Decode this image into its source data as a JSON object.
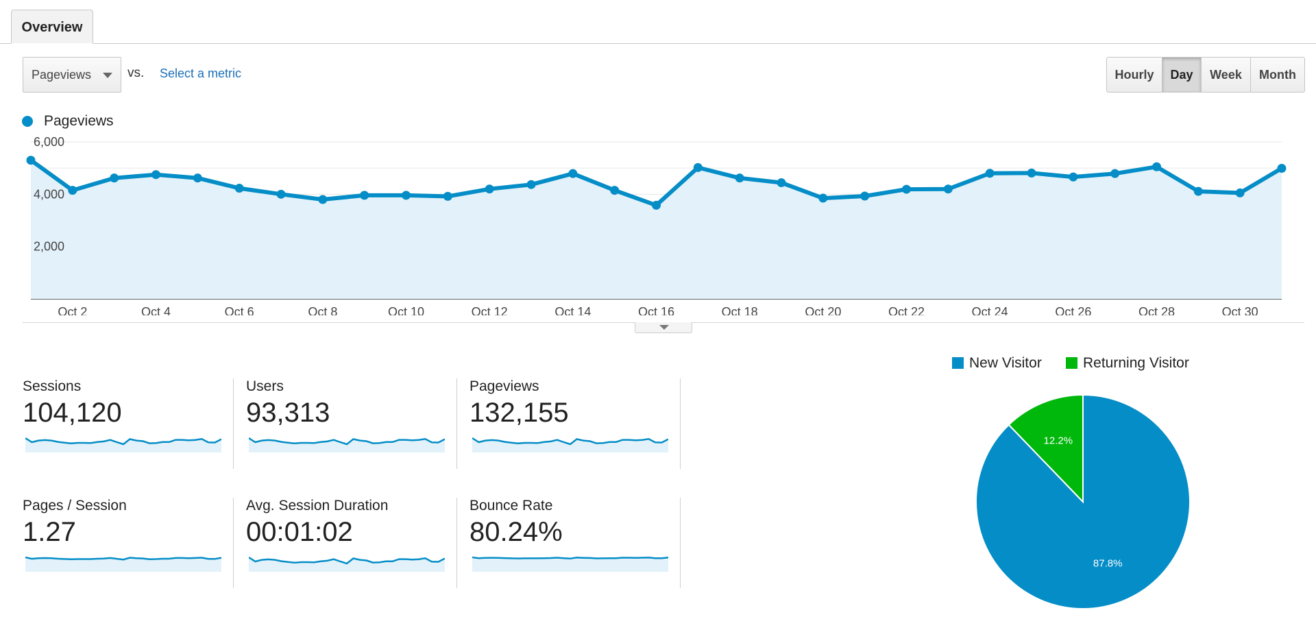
{
  "tabs": [
    {
      "label": "Overview"
    }
  ],
  "toolbar": {
    "metric_select": "Pageviews",
    "vs_label": "vs.",
    "select_metric_link": "Select a metric",
    "periods": [
      "Hourly",
      "Day",
      "Week",
      "Month"
    ],
    "active_period": "Day"
  },
  "colors": {
    "accent": "#058dc7",
    "area_fill": "#e3f2fa",
    "new_visitor": "#058dc7",
    "returning_visitor": "#00b70b",
    "link": "#1a6fb8"
  },
  "chart_data": [
    {
      "type": "line",
      "legend": "top-left",
      "series": [
        {
          "name": "Pageviews",
          "values": [
            5300,
            4150,
            4620,
            4750,
            4620,
            4230,
            4000,
            3800,
            3960,
            3960,
            3920,
            4200,
            4370,
            4790,
            4150,
            3580,
            5020,
            4620,
            4440,
            3850,
            3930,
            4190,
            4200,
            4800,
            4810,
            4660,
            4790,
            5050,
            4110,
            4050,
            4990
          ]
        }
      ],
      "x_dates": [
        "Oct 1",
        "Oct 2",
        "Oct 3",
        "Oct 4",
        "Oct 5",
        "Oct 6",
        "Oct 7",
        "Oct 8",
        "Oct 9",
        "Oct 10",
        "Oct 11",
        "Oct 12",
        "Oct 13",
        "Oct 14",
        "Oct 15",
        "Oct 16",
        "Oct 17",
        "Oct 18",
        "Oct 19",
        "Oct 20",
        "Oct 21",
        "Oct 22",
        "Oct 23",
        "Oct 24",
        "Oct 25",
        "Oct 26",
        "Oct 27",
        "Oct 28",
        "Oct 29",
        "Oct 30",
        "Oct 31"
      ],
      "x_tick_labels": [
        "Oct 2",
        "Oct 4",
        "Oct 6",
        "Oct 8",
        "Oct 10",
        "Oct 12",
        "Oct 14",
        "Oct 16",
        "Oct 18",
        "Oct 20",
        "Oct 22",
        "Oct 24",
        "Oct 26",
        "Oct 28",
        "Oct 30"
      ],
      "y_tick_labels": [
        "6,000",
        "4,000",
        "2,000"
      ],
      "ylim": [
        0,
        6000
      ],
      "grid": true
    },
    {
      "type": "pie",
      "labels": [
        "New Visitor",
        "Returning Visitor"
      ],
      "values": [
        87.8,
        12.2
      ],
      "data_labels": [
        "87.8%",
        "12.2%"
      ],
      "legend": "top"
    }
  ],
  "metrics": [
    {
      "label": "Sessions",
      "value": "104,120"
    },
    {
      "label": "Users",
      "value": "93,313"
    },
    {
      "label": "Pageviews",
      "value": "132,155"
    },
    {
      "label": "Pages / Session",
      "value": "1.27"
    },
    {
      "label": "Avg. Session Duration",
      "value": "00:01:02"
    },
    {
      "label": "Bounce Rate",
      "value": "80.24%"
    }
  ]
}
